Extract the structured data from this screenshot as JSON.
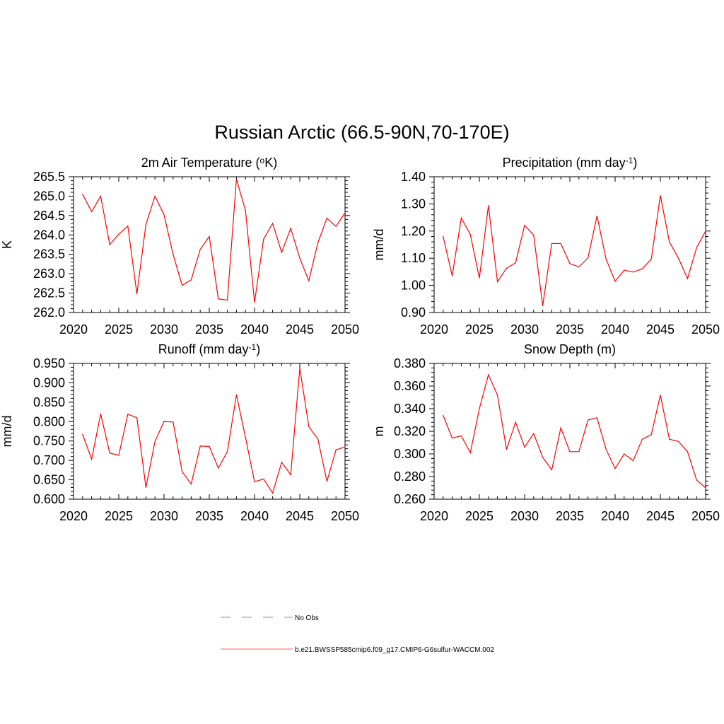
{
  "figure": {
    "title": "Russian Arctic (66.5-90N,70-170E)"
  },
  "legend": {
    "placement": "bottom-center",
    "entries": [
      {
        "label": "No Obs",
        "color": "#a3a3e0",
        "style": "dashed"
      },
      {
        "label": "b.e21.BWSSP585cmip6.f09_g17.CMIP6-G6sulfur-WACCM.002",
        "color": "#ff8080",
        "style": "solid"
      }
    ]
  },
  "chart_data": [
    {
      "type": "line",
      "title_main": "2m Air Temperature (",
      "title_sup_pre": "o",
      "title_rest": "K)",
      "title_sup_post": "",
      "title_end": "",
      "ylabel": "K",
      "xlim": [
        2020,
        2050
      ],
      "ylim": [
        262.0,
        265.5
      ],
      "x_ticks": [
        2020,
        2025,
        2030,
        2035,
        2040,
        2045,
        2050
      ],
      "y_ticks": [
        "262.0",
        "262.5",
        "263.0",
        "263.5",
        "264.0",
        "264.5",
        "265.0",
        "265.5"
      ],
      "series": [
        {
          "color": "#ff0000",
          "x": [
            2021,
            2022,
            2023,
            2024,
            2025,
            2026,
            2027,
            2028,
            2029,
            2030,
            2031,
            2032,
            2033,
            2034,
            2035,
            2036,
            2037,
            2038,
            2039,
            2040,
            2041,
            2042,
            2043,
            2044,
            2045,
            2046,
            2047,
            2048,
            2049,
            2050
          ],
          "y": [
            265.05,
            264.6,
            265.0,
            263.75,
            264.02,
            264.23,
            262.48,
            264.27,
            265.0,
            264.52,
            263.5,
            262.7,
            262.84,
            263.63,
            263.96,
            262.35,
            262.32,
            265.44,
            264.63,
            262.26,
            263.89,
            264.3,
            263.55,
            264.17,
            263.4,
            262.82,
            263.8,
            264.43,
            264.22,
            264.57
          ]
        }
      ]
    },
    {
      "type": "line",
      "title_main": "Precipitation (mm day",
      "title_sup_pre": "",
      "title_rest": "",
      "title_sup_post": "-1",
      "title_end": ")",
      "ylabel": "mm/d",
      "xlim": [
        2020,
        2050
      ],
      "ylim": [
        0.9,
        1.4
      ],
      "x_ticks": [
        2020,
        2025,
        2030,
        2035,
        2040,
        2045,
        2050
      ],
      "y_ticks": [
        "0.90",
        "1.00",
        "1.10",
        "1.20",
        "1.30",
        "1.40"
      ],
      "series": [
        {
          "color": "#ff0000",
          "x": [
            2021,
            2022,
            2023,
            2024,
            2025,
            2026,
            2027,
            2028,
            2029,
            2030,
            2031,
            2032,
            2033,
            2034,
            2035,
            2036,
            2037,
            2038,
            2039,
            2040,
            2041,
            2042,
            2043,
            2044,
            2045,
            2046,
            2047,
            2048,
            2049,
            2050
          ],
          "y": [
            1.18,
            1.035,
            1.248,
            1.188,
            1.027,
            1.294,
            1.013,
            1.063,
            1.083,
            1.221,
            1.185,
            0.925,
            1.154,
            1.154,
            1.08,
            1.068,
            1.101,
            1.256,
            1.097,
            1.015,
            1.056,
            1.049,
            1.061,
            1.097,
            1.331,
            1.16,
            1.1,
            1.025,
            1.138,
            1.2
          ]
        }
      ]
    },
    {
      "type": "line",
      "title_main": "Runoff (mm day",
      "title_sup_pre": "",
      "title_rest": "",
      "title_sup_post": "-1",
      "title_end": ")",
      "ylabel": "mm/d",
      "xlim": [
        2020,
        2050
      ],
      "ylim": [
        0.6,
        0.95
      ],
      "x_ticks": [
        2020,
        2025,
        2030,
        2035,
        2040,
        2045,
        2050
      ],
      "y_ticks": [
        "0.600",
        "0.650",
        "0.700",
        "0.750",
        "0.800",
        "0.850",
        "0.900",
        "0.950"
      ],
      "series": [
        {
          "color": "#ff0000",
          "x": [
            2021,
            2022,
            2023,
            2024,
            2025,
            2026,
            2027,
            2028,
            2029,
            2030,
            2031,
            2032,
            2033,
            2034,
            2035,
            2036,
            2037,
            2038,
            2039,
            2040,
            2041,
            2042,
            2043,
            2044,
            2045,
            2046,
            2047,
            2048,
            2049,
            2050
          ],
          "y": [
            0.767,
            0.703,
            0.82,
            0.719,
            0.713,
            0.819,
            0.81,
            0.63,
            0.749,
            0.8,
            0.799,
            0.671,
            0.639,
            0.737,
            0.736,
            0.68,
            0.723,
            0.869,
            0.759,
            0.645,
            0.652,
            0.616,
            0.695,
            0.663,
            0.938,
            0.787,
            0.755,
            0.646,
            0.727,
            0.735
          ]
        }
      ]
    },
    {
      "type": "line",
      "title_main": "Snow Depth (m)",
      "title_sup_pre": "",
      "title_rest": "",
      "title_sup_post": "",
      "title_end": "",
      "ylabel": "m",
      "xlim": [
        2020,
        2050
      ],
      "ylim": [
        0.26,
        0.38
      ],
      "x_ticks": [
        2020,
        2025,
        2030,
        2035,
        2040,
        2045,
        2050
      ],
      "y_ticks": [
        "0.260",
        "0.280",
        "0.300",
        "0.320",
        "0.340",
        "0.360",
        "0.380"
      ],
      "series": [
        {
          "color": "#ff0000",
          "x": [
            2021,
            2022,
            2023,
            2024,
            2025,
            2026,
            2027,
            2028,
            2029,
            2030,
            2031,
            2032,
            2033,
            2034,
            2035,
            2036,
            2037,
            2038,
            2039,
            2040,
            2041,
            2042,
            2043,
            2044,
            2045,
            2046,
            2047,
            2048,
            2049,
            2050
          ],
          "y": [
            0.334,
            0.314,
            0.316,
            0.301,
            0.34,
            0.37,
            0.352,
            0.304,
            0.328,
            0.306,
            0.318,
            0.297,
            0.286,
            0.323,
            0.302,
            0.302,
            0.33,
            0.332,
            0.304,
            0.287,
            0.3,
            0.294,
            0.313,
            0.317,
            0.352,
            0.313,
            0.311,
            0.302,
            0.277,
            0.27
          ]
        }
      ]
    }
  ]
}
